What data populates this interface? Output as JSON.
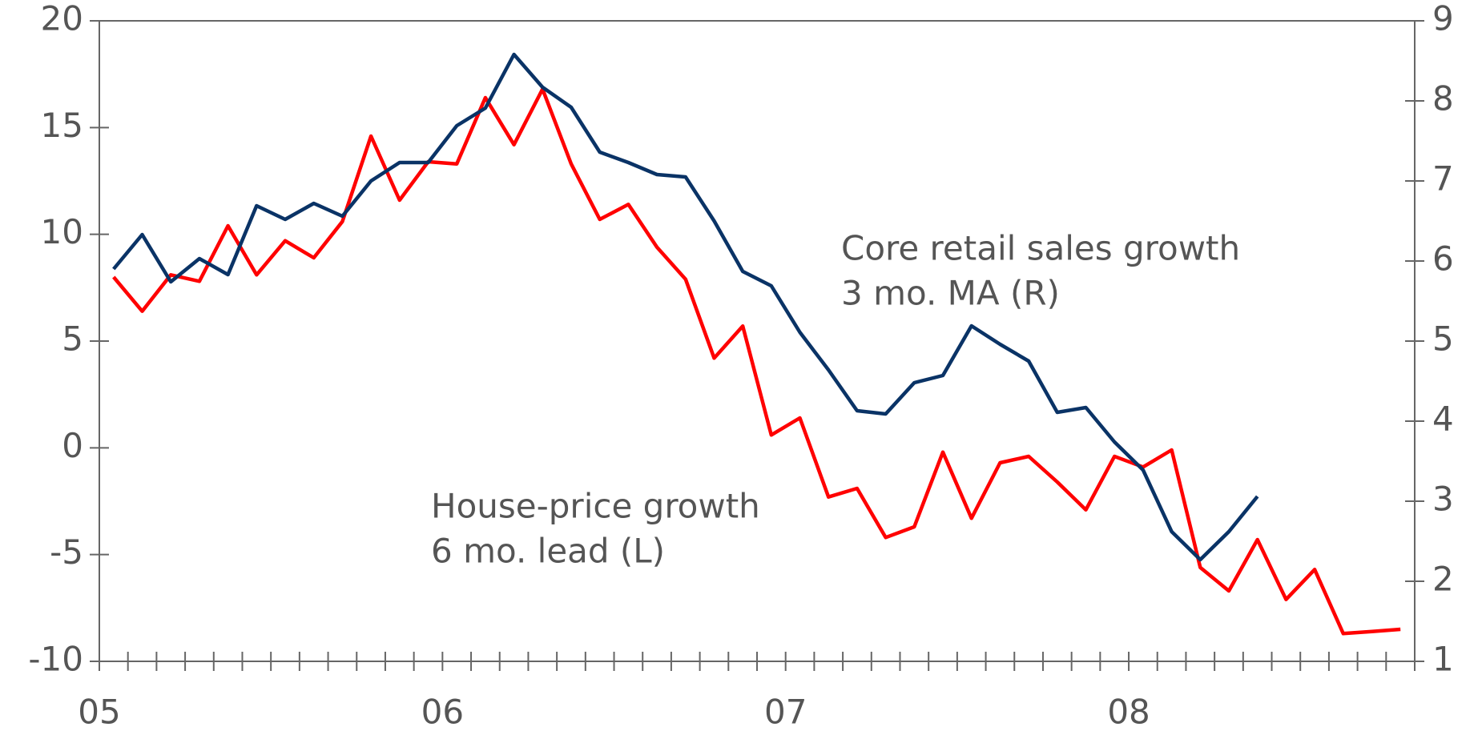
{
  "chart_data": {
    "type": "line",
    "categories": [
      "05",
      null,
      null,
      null,
      null,
      null,
      null,
      null,
      null,
      null,
      null,
      null,
      "06",
      null,
      null,
      null,
      null,
      null,
      null,
      null,
      null,
      null,
      null,
      null,
      "07",
      null,
      null,
      null,
      null,
      null,
      null,
      null,
      null,
      null,
      null,
      null,
      "08",
      null,
      null,
      null,
      null,
      null,
      null,
      null,
      null,
      null
    ],
    "series": [
      {
        "name": "House-price growth",
        "subname": "6 mo. lead (L)",
        "color": "#ff0000",
        "axis": "y",
        "values": [
          8.0,
          6.4,
          8.1,
          7.8,
          10.4,
          8.1,
          9.7,
          8.9,
          10.6,
          14.6,
          11.6,
          13.4,
          13.3,
          16.4,
          14.2,
          16.8,
          13.3,
          10.7,
          11.4,
          9.4,
          7.9,
          4.2,
          5.7,
          0.6,
          1.4,
          -2.3,
          -1.9,
          -4.2,
          -3.7,
          -0.2,
          -3.3,
          -0.7,
          -0.4,
          -1.6,
          -2.9,
          -0.4,
          -0.9,
          -0.1,
          -5.6,
          -6.7,
          -4.3,
          -7.1,
          -5.7,
          -8.7,
          -8.6,
          -8.5
        ]
      },
      {
        "name": "Core retail sales growth",
        "subname": "3 mo. MA (R)",
        "color": "#0a3366",
        "axis": "y2",
        "values": [
          5.9,
          6.33,
          5.74,
          6.03,
          5.83,
          6.69,
          6.52,
          6.72,
          6.56,
          7.0,
          7.23,
          7.23,
          7.69,
          7.91,
          8.58,
          8.17,
          7.92,
          7.36,
          7.23,
          7.08,
          7.05,
          6.5,
          5.87,
          5.69,
          5.11,
          4.64,
          4.13,
          4.09,
          4.48,
          4.57,
          5.19,
          4.96,
          4.75,
          4.11,
          4.17,
          3.74,
          3.39,
          2.62,
          2.27,
          2.62,
          3.06,
          null,
          null,
          null,
          null,
          null
        ]
      }
    ],
    "ylim": [
      -10,
      20
    ],
    "yticks": [
      -10,
      -5,
      0,
      5,
      10,
      15,
      20
    ],
    "y2lim": [
      1,
      9
    ],
    "y2ticks": [
      1,
      2,
      3,
      4,
      5,
      6,
      7,
      8,
      9
    ]
  }
}
